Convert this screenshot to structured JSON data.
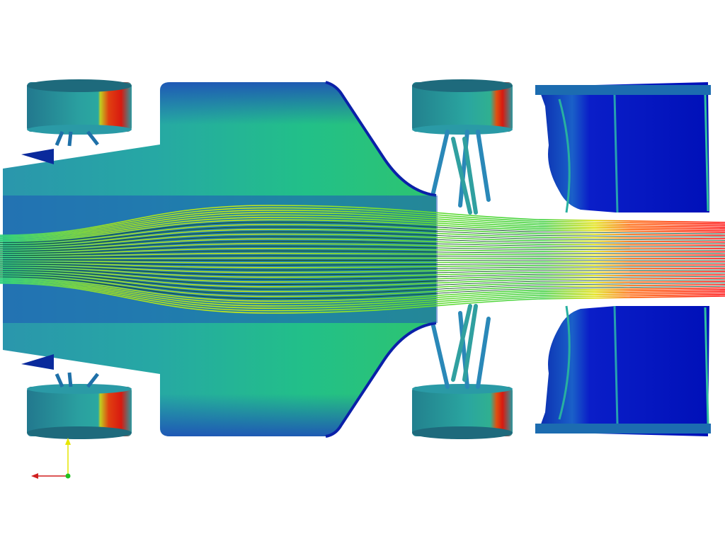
{
  "scene": {
    "subject": "race-car-top-view",
    "colormap": [
      "#00007a",
      "#0020d0",
      "#1a64c8",
      "#2a9aa8",
      "#22c08a",
      "#40d040",
      "#b0e820",
      "#f0e000",
      "#ff8000",
      "#e00000"
    ]
  },
  "axes_triad": {
    "icons": [
      "x-axis-arrow-icon",
      "y-axis-arrow-icon",
      "origin-dot-icon"
    ],
    "colors": {
      "x": "#d02020",
      "y": "#e6e600",
      "origin": "#20c020"
    }
  }
}
